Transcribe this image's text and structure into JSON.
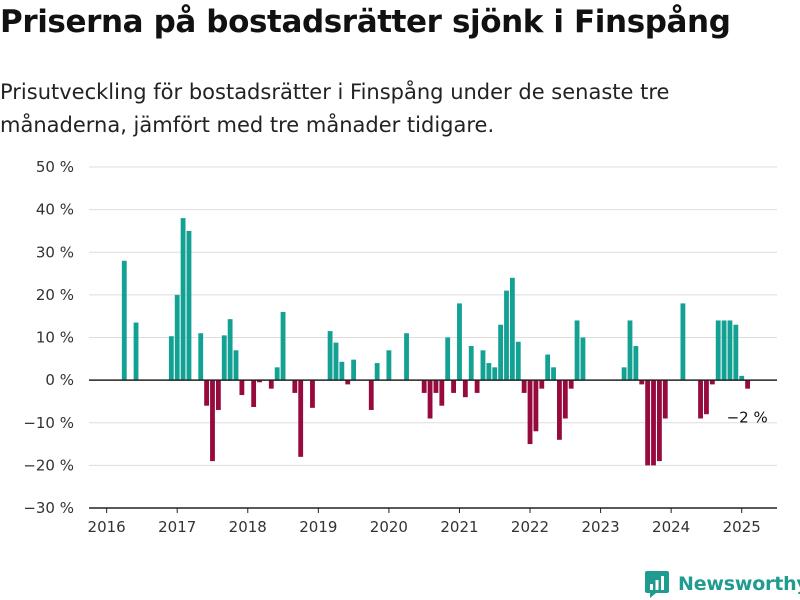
{
  "title": "Priserna på bostadsrätter sjönk i Finspång",
  "subtitle": "Prisutveckling för bostadsrätter i Finspång under de senaste tre månaderna, jämfört med tre månader tidigare.",
  "brand": "Newsworthy",
  "colors": {
    "positive": "#12a193",
    "negative": "#970a3d",
    "grid": "#dddddd",
    "axis": "#222222",
    "brand": "#1f9c8f"
  },
  "chart_data": {
    "type": "bar",
    "title": "Priserna på bostadsrätter sjönk i Finspång",
    "subtitle": "Prisutveckling för bostadsrätter i Finspång under de senaste tre månaderna, jämfört med tre månader tidigare.",
    "xlabel": "",
    "ylabel": "",
    "unit": "%",
    "ylim": [
      -30,
      50
    ],
    "yticks": [
      50,
      40,
      30,
      20,
      10,
      0,
      -10,
      -20,
      -30
    ],
    "ytick_labels": [
      "50 %",
      "40 %",
      "30 %",
      "20 %",
      "10 %",
      "0 %",
      "−10 %",
      "−20 %",
      "−30 %"
    ],
    "xlim": [
      2015.75,
      2025.5
    ],
    "xticks": [
      2016,
      2017,
      2018,
      2019,
      2020,
      2021,
      2022,
      2023,
      2024,
      2025
    ],
    "xtick_labels": [
      "2016",
      "2017",
      "2018",
      "2019",
      "2020",
      "2021",
      "2022",
      "2023",
      "2024",
      "2025"
    ],
    "grid": true,
    "points": [
      [
        "2016-04",
        28
      ],
      [
        "2016-06",
        13.5
      ],
      [
        "2016-12",
        10.3
      ],
      [
        "2017-01",
        20
      ],
      [
        "2017-02",
        38
      ],
      [
        "2017-03",
        35
      ],
      [
        "2017-05",
        11
      ],
      [
        "2017-06",
        -6
      ],
      [
        "2017-07",
        -19
      ],
      [
        "2017-08",
        -7
      ],
      [
        "2017-09",
        10.5
      ],
      [
        "2017-10",
        14.3
      ],
      [
        "2017-11",
        7
      ],
      [
        "2017-12",
        -3.5
      ],
      [
        "2018-02",
        -6.3
      ],
      [
        "2018-03",
        -0.5
      ],
      [
        "2018-05",
        -2
      ],
      [
        "2018-06",
        3
      ],
      [
        "2018-07",
        16
      ],
      [
        "2018-09",
        -3
      ],
      [
        "2018-10",
        -18
      ],
      [
        "2018-12",
        -6.5
      ],
      [
        "2019-03",
        11.5
      ],
      [
        "2019-04",
        8.8
      ],
      [
        "2019-05",
        4.3
      ],
      [
        "2019-06",
        -1
      ],
      [
        "2019-07",
        4.8
      ],
      [
        "2019-10",
        -7
      ],
      [
        "2019-11",
        4
      ],
      [
        "2020-01",
        7
      ],
      [
        "2020-04",
        11
      ],
      [
        "2020-07",
        -3
      ],
      [
        "2020-08",
        -9
      ],
      [
        "2020-09",
        -3
      ],
      [
        "2020-10",
        -6
      ],
      [
        "2020-11",
        10
      ],
      [
        "2020-12",
        -3
      ],
      [
        "2021-01",
        18
      ],
      [
        "2021-02",
        -4
      ],
      [
        "2021-03",
        8
      ],
      [
        "2021-04",
        -3
      ],
      [
        "2021-05",
        7
      ],
      [
        "2021-06",
        4
      ],
      [
        "2021-07",
        3
      ],
      [
        "2021-08",
        13
      ],
      [
        "2021-09",
        21
      ],
      [
        "2021-10",
        24
      ],
      [
        "2021-11",
        9
      ],
      [
        "2021-12",
        -3
      ],
      [
        "2022-01",
        -15
      ],
      [
        "2022-02",
        -12
      ],
      [
        "2022-03",
        -2
      ],
      [
        "2022-04",
        6
      ],
      [
        "2022-05",
        3
      ],
      [
        "2022-06",
        -14
      ],
      [
        "2022-07",
        -9
      ],
      [
        "2022-08",
        -2
      ],
      [
        "2022-09",
        14
      ],
      [
        "2022-10",
        10
      ],
      [
        "2023-05",
        3
      ],
      [
        "2023-06",
        14
      ],
      [
        "2023-07",
        8
      ],
      [
        "2023-08",
        -1
      ],
      [
        "2023-09",
        -20
      ],
      [
        "2023-10",
        -20
      ],
      [
        "2023-11",
        -19
      ],
      [
        "2023-12",
        -9
      ],
      [
        "2024-03",
        18
      ],
      [
        "2024-06",
        -9
      ],
      [
        "2024-07",
        -8
      ],
      [
        "2024-08",
        -1
      ],
      [
        "2024-09",
        14
      ],
      [
        "2024-10",
        14
      ],
      [
        "2024-11",
        14
      ],
      [
        "2024-12",
        13
      ],
      [
        "2025-01",
        1
      ],
      [
        "2025-02",
        -2
      ]
    ],
    "annotations": [
      {
        "label": "−2 %",
        "x": "2025-02",
        "y": -2
      }
    ]
  }
}
